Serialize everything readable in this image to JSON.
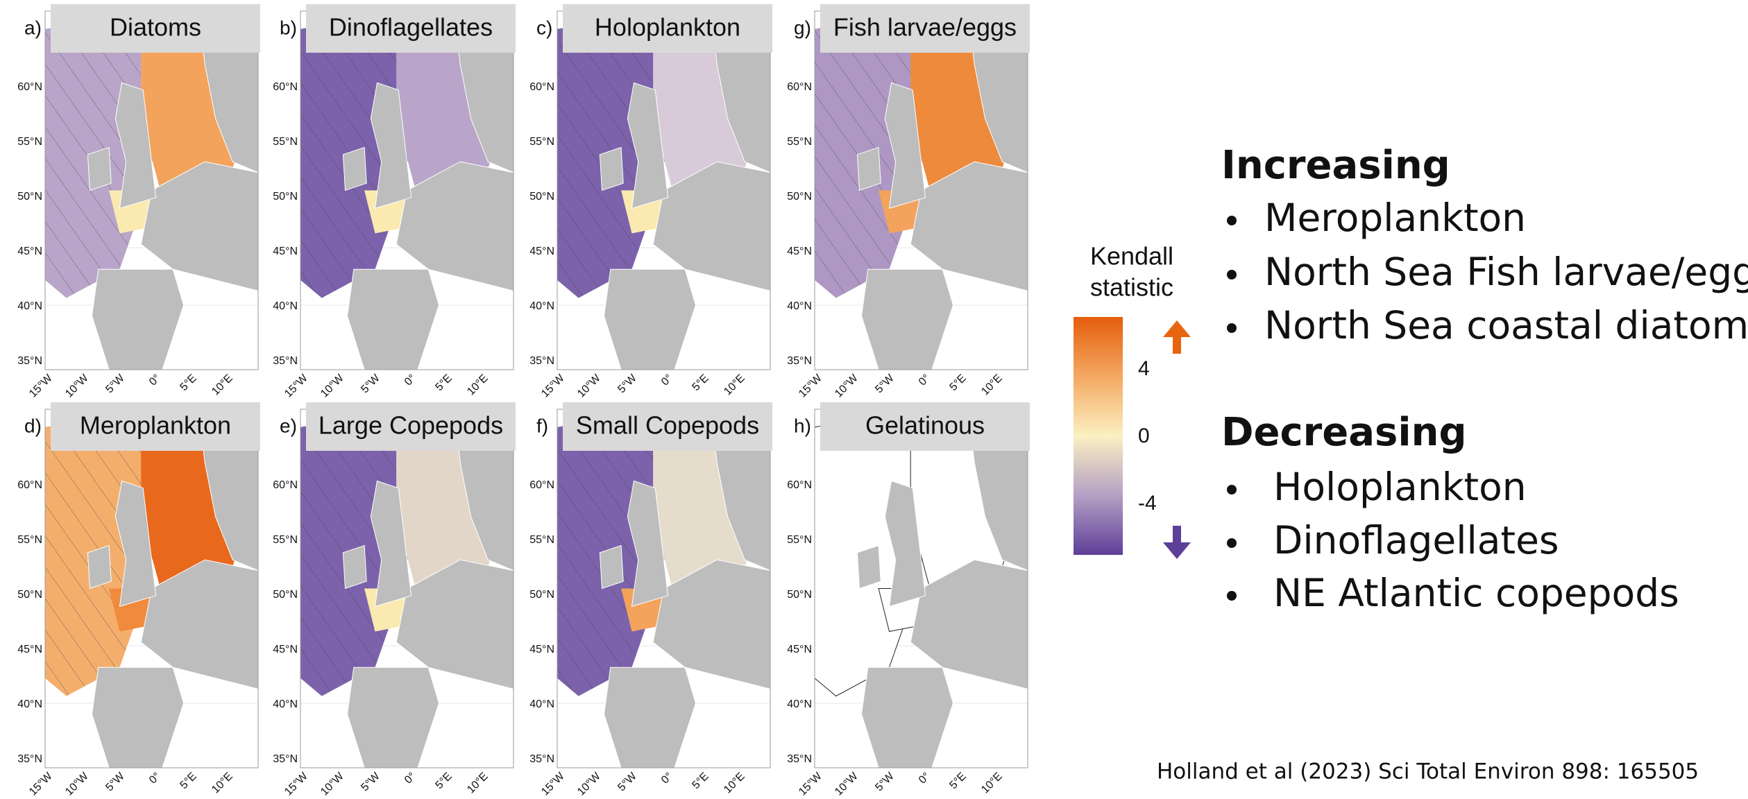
{
  "panels": [
    {
      "letter": "a)",
      "title": "Diatoms"
    },
    {
      "letter": "b)",
      "title": "Dinoflagellates"
    },
    {
      "letter": "c)",
      "title": "Holoplankton"
    },
    {
      "letter": "g)",
      "title": "Fish larvae/eggs"
    },
    {
      "letter": "d)",
      "title": "Meroplankton"
    },
    {
      "letter": "e)",
      "title": "Large Copepods"
    },
    {
      "letter": "f)",
      "title": "Small Copepods"
    },
    {
      "letter": "h)",
      "title": "Gelatinous"
    }
  ],
  "lat_labels": [
    "60°N",
    "55°N",
    "50°N",
    "45°N",
    "40°N",
    "35°N"
  ],
  "lon_labels": [
    "15°W",
    "10°W",
    "5°W",
    "0°",
    "5°E",
    "10°E"
  ],
  "colorbar": {
    "title_lines": [
      "Kendall",
      "statistic"
    ],
    "ticks": [
      "4",
      "0",
      "-4"
    ]
  },
  "increasing": {
    "heading": "Increasing",
    "items": [
      "Meroplankton",
      "North Sea Fish larvae/eggs",
      "North Sea coastal diatoms"
    ]
  },
  "decreasing": {
    "heading": "Decreasing",
    "items": [
      "Holoplankton",
      "Dinoflagellates",
      "NE Atlantic copepods"
    ]
  },
  "citation": "Holland et al (2023) Sci Total Environ 898: 165505"
}
